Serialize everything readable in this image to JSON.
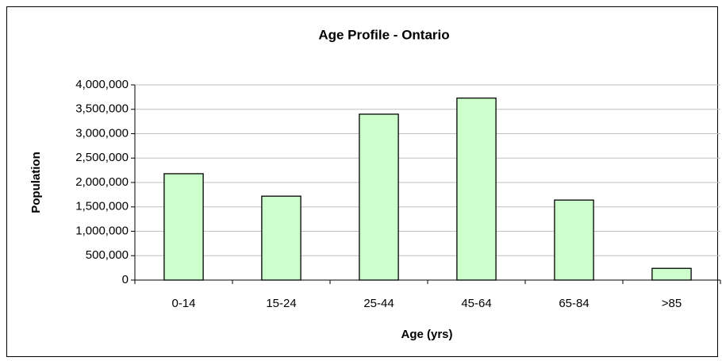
{
  "chart_data": {
    "type": "bar",
    "title": "Age Profile - Ontario",
    "x_label": "Age (yrs)",
    "y_label": "Population",
    "categories": [
      "0-14",
      "15-24",
      "25-44",
      "45-64",
      "65-84",
      ">85"
    ],
    "values": [
      2180000,
      1720000,
      3400000,
      3730000,
      1640000,
      240000
    ],
    "color": "#ccffcc",
    "ylim": [
      0,
      4000000
    ],
    "yticks": [
      0,
      {
        "value": 500000,
        "label": "500,000"
      },
      {
        "value": 1000000,
        "label": "1,000,000"
      },
      {
        "value": 1500000,
        "label": "1,500,000"
      },
      {
        "value": 2000000,
        "label": "2,000,000"
      },
      {
        "value": 2500000,
        "label": "2,500,000"
      },
      {
        "value": 3000000,
        "label": "3,000,000"
      },
      {
        "value": 3500000,
        "label": "3,500,000"
      },
      {
        "value": 4000000,
        "label": "4,000,000"
      }
    ],
    "grid": true
  }
}
